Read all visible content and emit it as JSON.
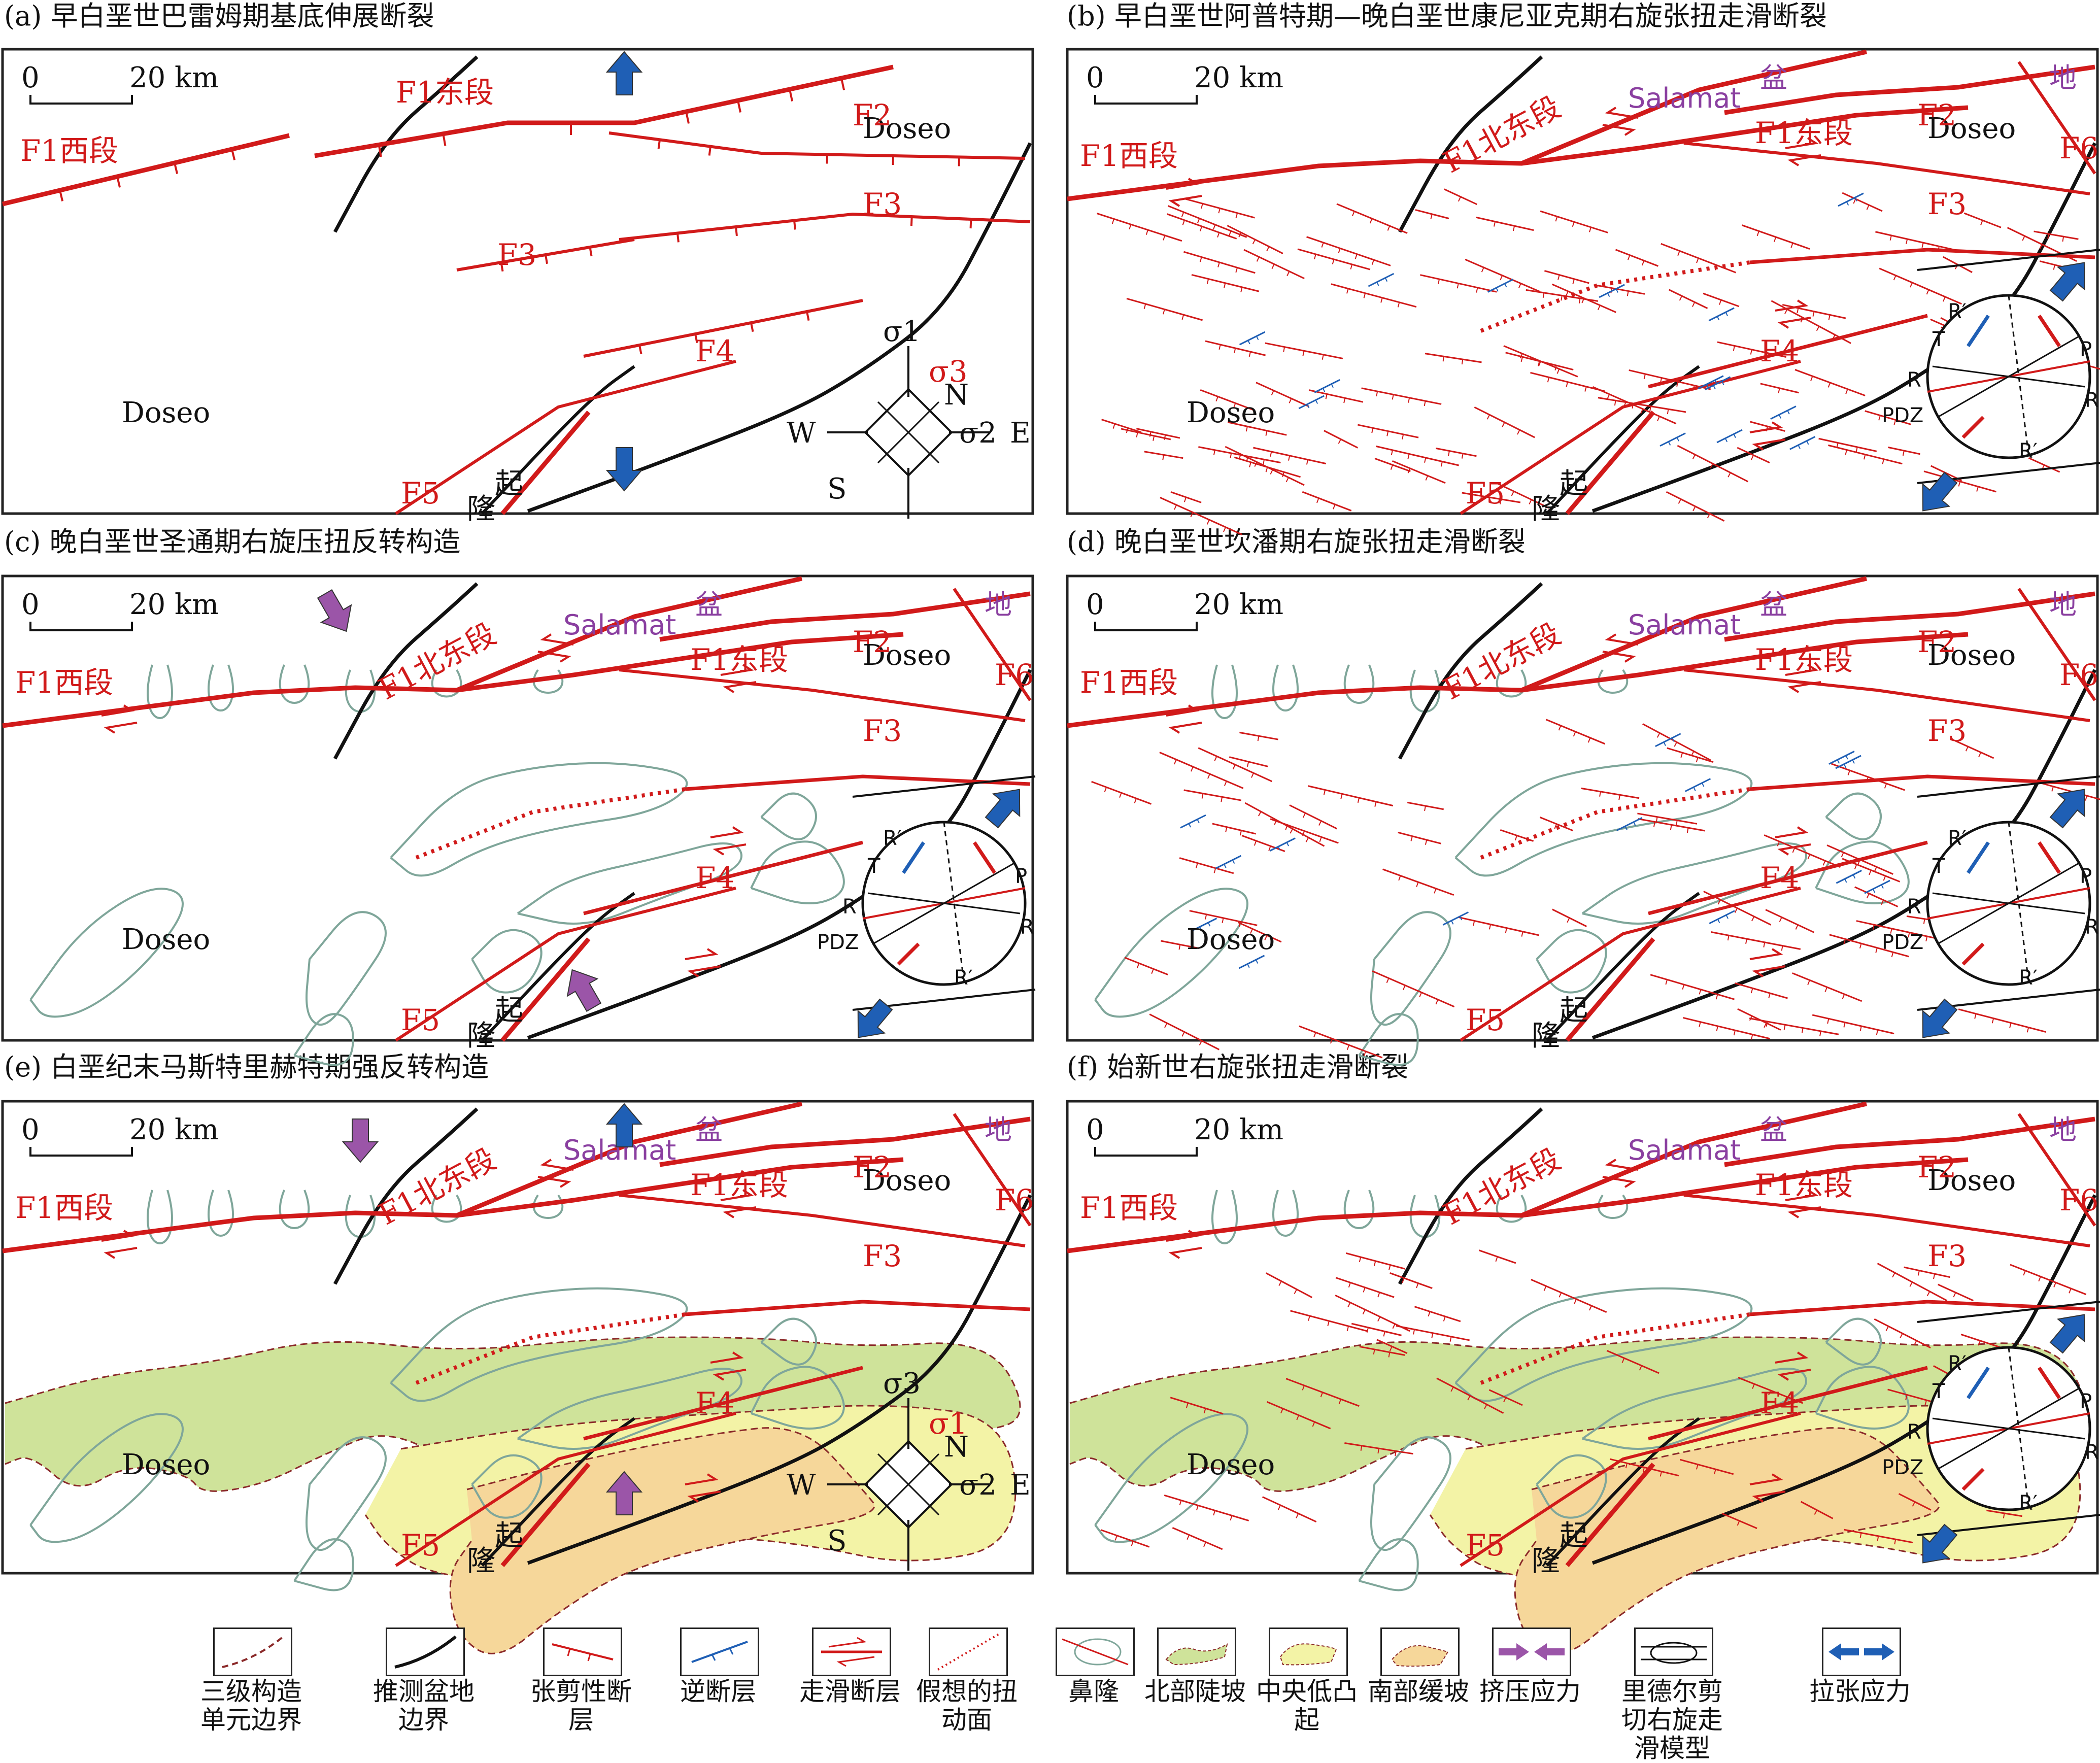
{
  "panels": [
    {
      "id": "a",
      "title": "(a) 早白垩世巴雷姆期基底伸展断裂",
      "stress": "sigma3"
    },
    {
      "id": "b",
      "title": "(b) 早白垩世阿普特期—晚白垩世康尼亚克期右旋张扭走滑断裂",
      "stress": "riedel-extension"
    },
    {
      "id": "c",
      "title": "(c) 晚白垩世圣通期右旋压扭反转构造",
      "stress": "riedel-compression"
    },
    {
      "id": "d",
      "title": "(d) 晚白垩世坎潘期右旋张扭走滑断裂",
      "stress": "riedel-extension"
    },
    {
      "id": "e",
      "title": "(e) 白垩纪末马斯特里赫特期强反转构造",
      "stress": "sigma1"
    },
    {
      "id": "f",
      "title": "(f) 始新世右旋张扭走滑断裂",
      "stress": "riedel-extension"
    }
  ],
  "labels": {
    "scale": "20 km",
    "scale_zero": "0",
    "f1_west": "F1西段",
    "f1_east": "F1东段",
    "f1_north": "F1",
    "f1_north_rest": "北东段",
    "f2": "F2",
    "f3": "F3",
    "f4": "F4",
    "f5": "F5",
    "f6": "F6",
    "doseo": "Doseo",
    "salamat": "Salamat",
    "basin_1": "盆",
    "basin_2": "地",
    "uplift_1": "起",
    "uplift_2": "隆",
    "compass": {
      "n": "N",
      "e": "E",
      "w": "W",
      "s": "S",
      "sigma1": "σ1",
      "sigma2": "σ2",
      "sigma3": "σ3"
    },
    "riedel": {
      "t": "T",
      "p": "P",
      "r": "R",
      "r_prime": "R′",
      "pdz": "PDZ"
    }
  },
  "legend": [
    {
      "label": "三级构造单元边界",
      "icon": "dashed-brown-boundary-icon"
    },
    {
      "label": "推测盆地边界",
      "icon": "black-basin-boundary-icon"
    },
    {
      "label": "张剪性断层",
      "icon": "red-tensile-fault-icon"
    },
    {
      "label": "逆断层",
      "icon": "blue-reverse-fault-icon"
    },
    {
      "label": "走滑断层",
      "icon": "strike-slip-fault-icon"
    },
    {
      "label": "假想的扭动面",
      "icon": "dotted-torsion-plane-icon"
    },
    {
      "label": "鼻隆",
      "icon": "nose-uplift-icon"
    },
    {
      "label": "北部陡坡",
      "icon": "green-north-slope-icon"
    },
    {
      "label": "中央低凸起",
      "icon": "yellow-central-uplift-icon"
    },
    {
      "label": "南部缓坡",
      "icon": "orange-south-slope-icon"
    },
    {
      "label": "挤压应力",
      "icon": "purple-compression-arrows-icon"
    },
    {
      "label": "里德尔剪切右旋走滑模型",
      "icon": "riedel-shear-model-icon"
    },
    {
      "label": "拉张应力",
      "icon": "blue-extension-arrows-icon"
    }
  ],
  "colors": {
    "fault": "#d11a1a",
    "reverse": "#1f5fb5",
    "boundary": "#111111",
    "nose": "#7fa69a",
    "north_slope": "#cfe39a",
    "central": "#f3f3a6",
    "south_slope": "#f6d79a",
    "compress": "#9b55a8",
    "extend": "#1f5fb5",
    "third_boundary": "#8b2a2a"
  }
}
